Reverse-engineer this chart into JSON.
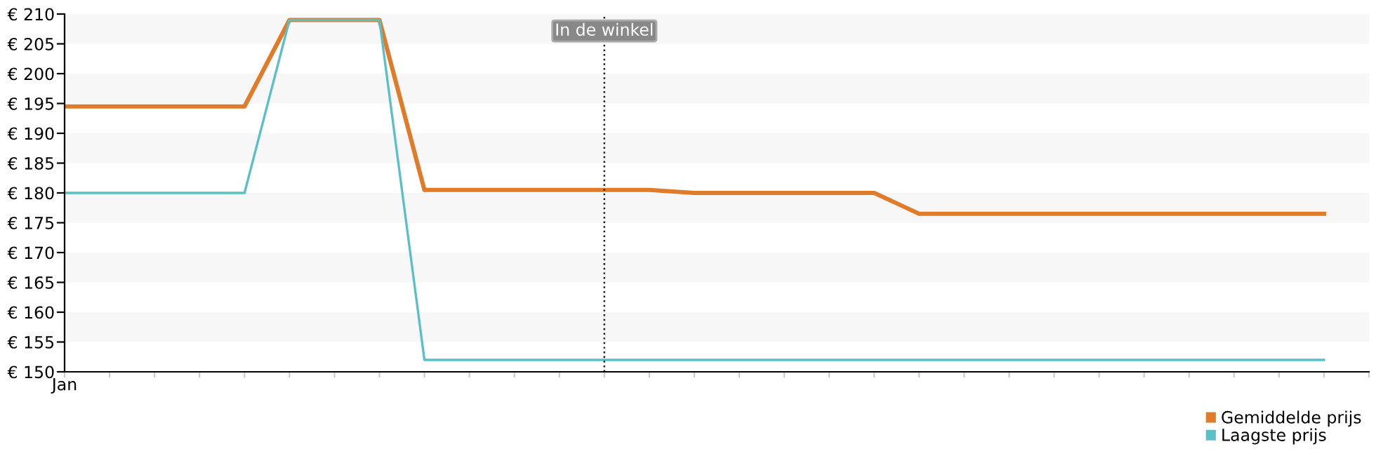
{
  "chart_data": {
    "type": "line",
    "categories": [
      "Jan",
      null,
      null,
      null,
      null,
      null,
      null,
      null,
      null,
      null,
      null,
      null,
      null,
      null,
      null,
      null,
      null,
      null,
      null,
      null,
      null,
      null,
      null,
      null,
      null,
      null,
      null,
      null,
      null,
      null
    ],
    "series": [
      {
        "name": "Gemiddelde prijs",
        "color": "#e07b2a",
        "values": [
          194.5,
          194.5,
          194.5,
          194.5,
          194.5,
          209,
          209,
          209,
          180.5,
          180.5,
          180.5,
          180.5,
          180.5,
          180.5,
          180,
          180,
          180,
          180,
          180,
          176.5,
          176.5,
          176.5,
          176.5,
          176.5,
          176.5,
          176.5,
          176.5,
          176.5,
          176.5,
          null
        ]
      },
      {
        "name": "Laagste prijs",
        "color": "#5bbfc8",
        "values": [
          180,
          180,
          180,
          180,
          180,
          209,
          209,
          209,
          152,
          152,
          152,
          152,
          152,
          152,
          152,
          152,
          152,
          152,
          152,
          152,
          152,
          152,
          152,
          152,
          152,
          152,
          152,
          152,
          152,
          null
        ]
      }
    ],
    "ylim": [
      150,
      210
    ],
    "yticks": [
      {
        "value": 150,
        "label": "€ 150"
      },
      {
        "value": 155,
        "label": "€ 155"
      },
      {
        "value": 160,
        "label": "€ 160"
      },
      {
        "value": 165,
        "label": "€ 165"
      },
      {
        "value": 170,
        "label": "€ 170"
      },
      {
        "value": 175,
        "label": "€ 175"
      },
      {
        "value": 180,
        "label": "€ 180"
      },
      {
        "value": 185,
        "label": "€ 185"
      },
      {
        "value": 190,
        "label": "€ 190"
      },
      {
        "value": 195,
        "label": "€ 195"
      },
      {
        "value": 200,
        "label": "€ 200"
      },
      {
        "value": 205,
        "label": "€ 205"
      },
      {
        "value": 210,
        "label": "€ 210"
      }
    ],
    "annotations": [
      "In de winkel"
    ],
    "bands": [
      {
        "axis": "y",
        "from": 155,
        "to": 160,
        "color": "#f7f7f7"
      },
      {
        "axis": "y",
        "from": 165,
        "to": 170,
        "color": "#f7f7f7"
      },
      {
        "axis": "y",
        "from": 175,
        "to": 180,
        "color": "#f7f7f7"
      },
      {
        "axis": "y",
        "from": 185,
        "to": 190,
        "color": "#f7f7f7"
      },
      {
        "axis": "y",
        "from": 195,
        "to": 200,
        "color": "#f7f7f7"
      },
      {
        "axis": "y",
        "from": 205,
        "to": 210,
        "color": "#f7f7f7"
      }
    ],
    "legend": "bottom right",
    "marker": "none",
    "line_style": "solid"
  }
}
